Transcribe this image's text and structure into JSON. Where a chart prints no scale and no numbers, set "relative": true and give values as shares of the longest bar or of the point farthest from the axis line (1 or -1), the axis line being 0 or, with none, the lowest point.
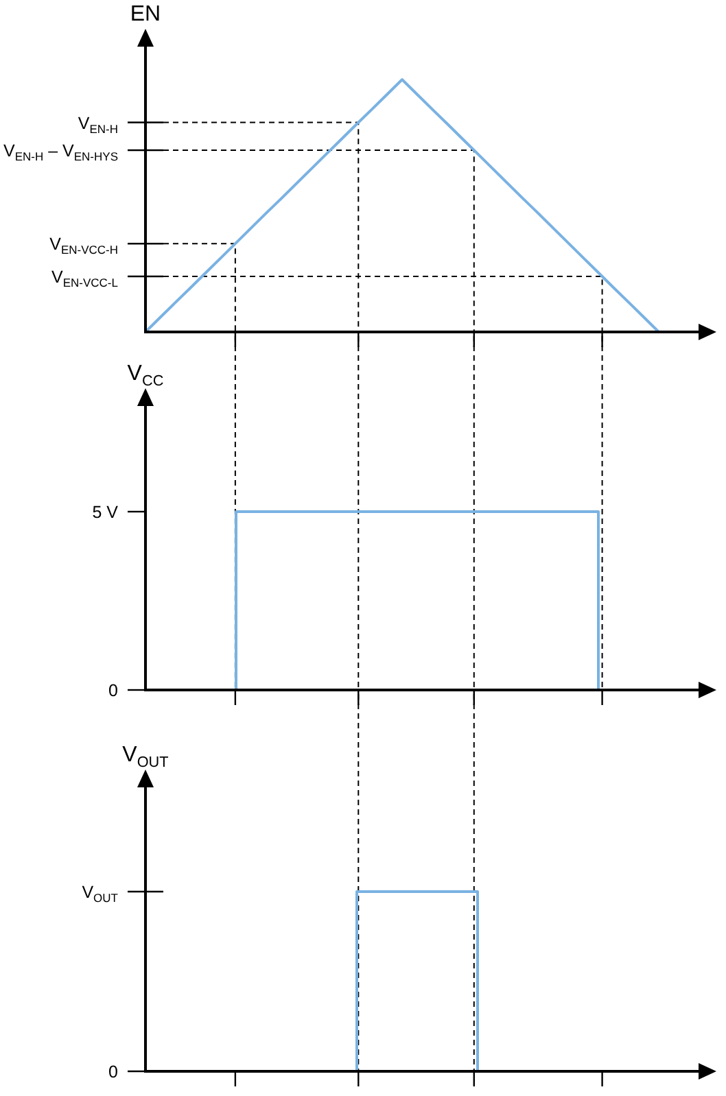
{
  "chart_data": [
    {
      "type": "line",
      "ylabel": "EN",
      "relative": true,
      "categories": [
        null,
        null,
        null,
        null,
        null,
        null,
        null,
        null,
        null,
        null,
        null,
        null,
        null,
        null,
        null,
        null,
        null,
        null,
        null,
        null,
        null,
        null,
        null,
        null,
        null,
        null,
        null,
        null,
        null,
        null,
        null,
        null,
        null,
        null,
        null,
        null,
        null
      ],
      "values": [
        0,
        0.059,
        0.118,
        0.176,
        0.235,
        0.294,
        0.353,
        0.412,
        0.471,
        0.529,
        0.588,
        0.647,
        0.706,
        0.765,
        0.824,
        0.882,
        0.941,
        1,
        0.941,
        0.882,
        0.824,
        0.765,
        0.706,
        0.647,
        0.588,
        0.529,
        0.471,
        0.412,
        0.353,
        0.294,
        0.235,
        0.176,
        0.118,
        0.059,
        0,
        null,
        null
      ],
      "color": "#7ab2e2",
      "ref_lines": [
        {
          "axis": "y",
          "value": 0.83,
          "label": "V$_{EN-H}$",
          "line_style": "dashed"
        },
        {
          "axis": "y",
          "value": 0.72,
          "label": "V$_{EN-H}$ – V$_{EN-HYS}$",
          "line_style": "dashed"
        },
        {
          "axis": "y",
          "value": 0.35,
          "label": "V$_{EN-VCC-H}$",
          "line_style": "dashed"
        },
        {
          "axis": "y",
          "value": 0.22,
          "label": "V$_{EN-VCC-L}$",
          "line_style": "dashed"
        }
      ]
    },
    {
      "type": "step",
      "ylabel": "V$_{CC}$",
      "categories": [
        null,
        null,
        null,
        null,
        null,
        null,
        null,
        null,
        null,
        null,
        null,
        null,
        null,
        null,
        null,
        null,
        null,
        null,
        null,
        null,
        null,
        null,
        null,
        null,
        null,
        null,
        null,
        null,
        null,
        null,
        null,
        null,
        null,
        null,
        null,
        null,
        null
      ],
      "values": [
        null,
        null,
        null,
        null,
        null,
        0,
        5,
        5,
        5,
        5,
        5,
        5,
        5,
        5,
        5,
        5,
        5,
        5,
        5,
        5,
        5,
        5,
        5,
        5,
        5,
        5,
        5,
        5,
        5,
        5,
        0,
        null,
        null,
        null,
        null,
        null,
        null
      ],
      "color": "#7ab2e2",
      "ylim": [
        0,
        8
      ],
      "yticks": [
        0,
        {
          "value": 5,
          "label": "5 V"
        }
      ]
    },
    {
      "type": "step",
      "ylabel": "V$_{OUT}$",
      "relative": true,
      "categories": [
        null,
        null,
        null,
        null,
        null,
        null,
        null,
        null,
        null,
        null,
        null,
        null,
        null,
        null,
        null,
        null,
        null,
        null,
        null,
        null,
        null,
        null,
        null,
        null,
        null,
        null,
        null,
        null,
        null,
        null,
        null,
        null,
        null,
        null,
        null,
        null,
        null
      ],
      "values": [
        null,
        null,
        null,
        null,
        null,
        null,
        null,
        null,
        null,
        null,
        null,
        null,
        null,
        0,
        1,
        1,
        1,
        1,
        1,
        1,
        1,
        1,
        0,
        null,
        null,
        null,
        null,
        null,
        null,
        null,
        null,
        null,
        null,
        null,
        null,
        null,
        null
      ],
      "color": "#7ab2e2",
      "ref_lines": [
        {
          "axis": "y",
          "value": 1,
          "label": "V$_{OUT}$"
        },
        {
          "axis": "y",
          "value": 0,
          "label": "0"
        }
      ]
    }
  ]
}
